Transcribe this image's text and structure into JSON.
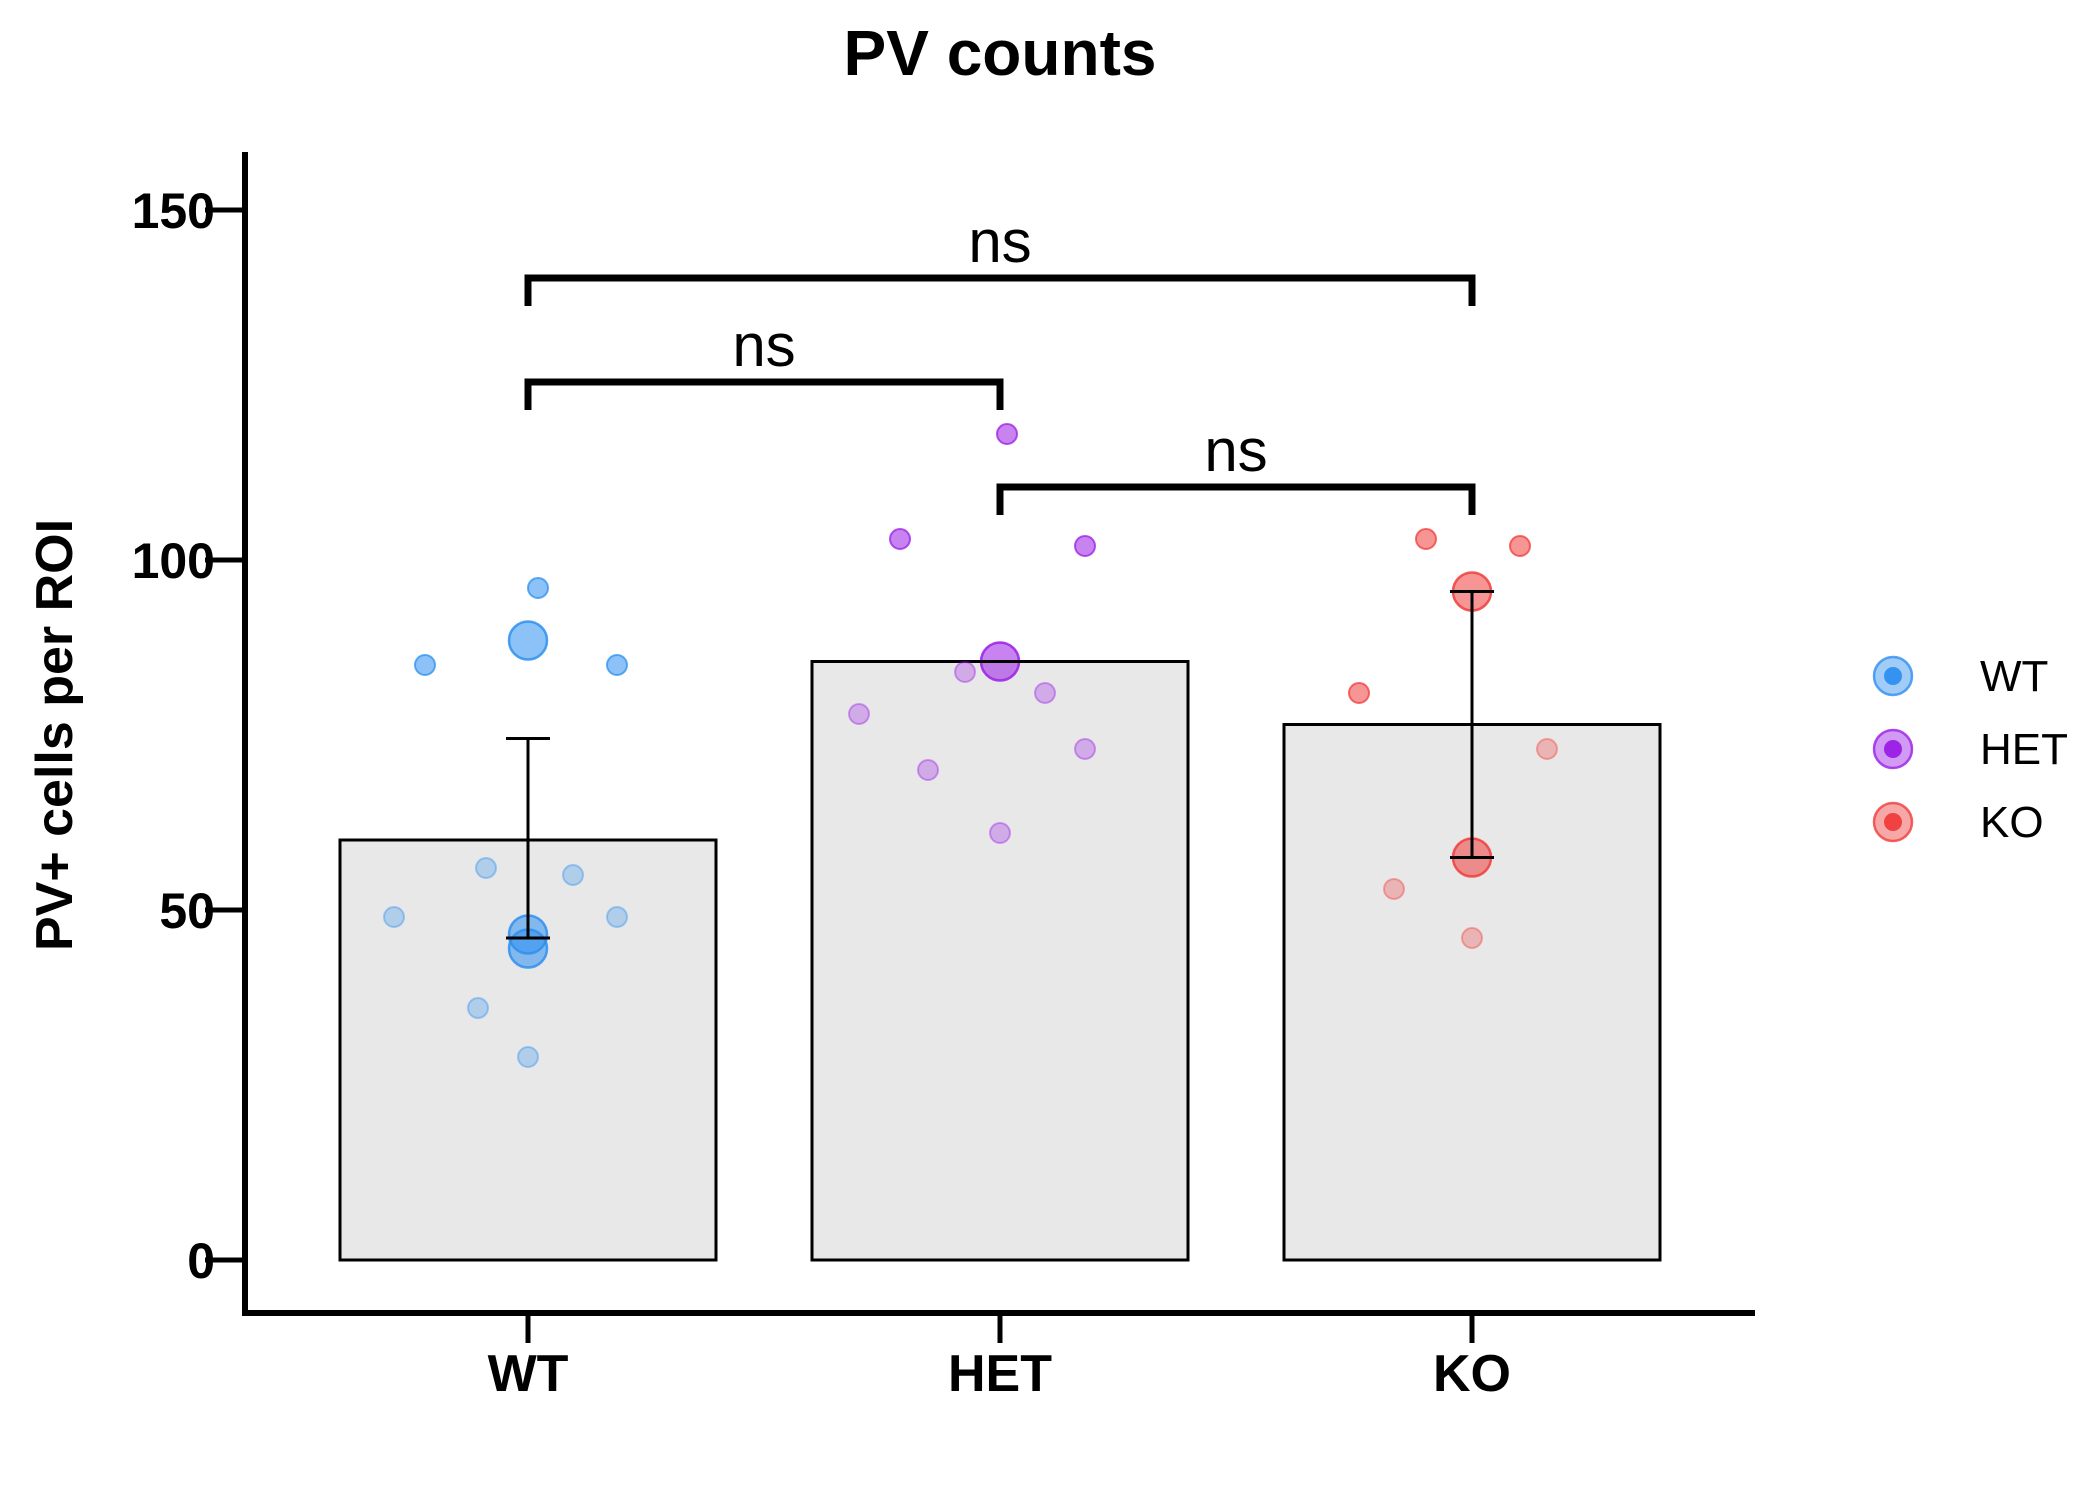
{
  "chart_data": {
    "type": "bar",
    "title": "PV counts",
    "ylabel": "PV+ cells per ROI",
    "xlabel": "",
    "ylim": [
      -8,
      158
    ],
    "yticks": [
      0,
      50,
      100,
      150
    ],
    "ytick_labels": [
      "0",
      "50",
      "100",
      "150"
    ],
    "categories": [
      "WT",
      "HET",
      "KO"
    ],
    "values": [
      60,
      85.5,
      76.5
    ],
    "colors": {
      "WT": "#2e8ff0",
      "HET": "#9a1ee6",
      "KO": "#f03c3c",
      "bar_fill": "#e8e8e8",
      "bar_edge": "#000000"
    },
    "error_bars": [
      {
        "group": "WT",
        "low": 46,
        "high": 74.5
      },
      {
        "group": "HET",
        "low": 85.5,
        "high": 85.5
      },
      {
        "group": "KO",
        "low": 57.5,
        "high": 95.5
      }
    ],
    "animal_means": [
      {
        "group": "WT",
        "values": [
          88.5,
          46.5,
          44.5
        ]
      },
      {
        "group": "HET",
        "values": [
          85.5
        ]
      },
      {
        "group": "KO",
        "values": [
          95.5,
          57.5
        ]
      }
    ],
    "individual_points": [
      {
        "group": "WT",
        "values": [
          96,
          85,
          85,
          56,
          55,
          49,
          49,
          36,
          29
        ]
      },
      {
        "group": "HET",
        "values": [
          118,
          103,
          102,
          84,
          81,
          78,
          73,
          70,
          61
        ]
      },
      {
        "group": "KO",
        "values": [
          103,
          102,
          81,
          73,
          53,
          46
        ]
      }
    ],
    "significance": [
      {
        "pair": [
          "WT",
          "KO"
        ],
        "label": "ns"
      },
      {
        "pair": [
          "WT",
          "HET"
        ],
        "label": "ns"
      },
      {
        "pair": [
          "HET",
          "KO"
        ],
        "label": "ns"
      }
    ],
    "legend": {
      "position": "right",
      "entries": [
        "WT",
        "HET",
        "KO"
      ]
    }
  }
}
